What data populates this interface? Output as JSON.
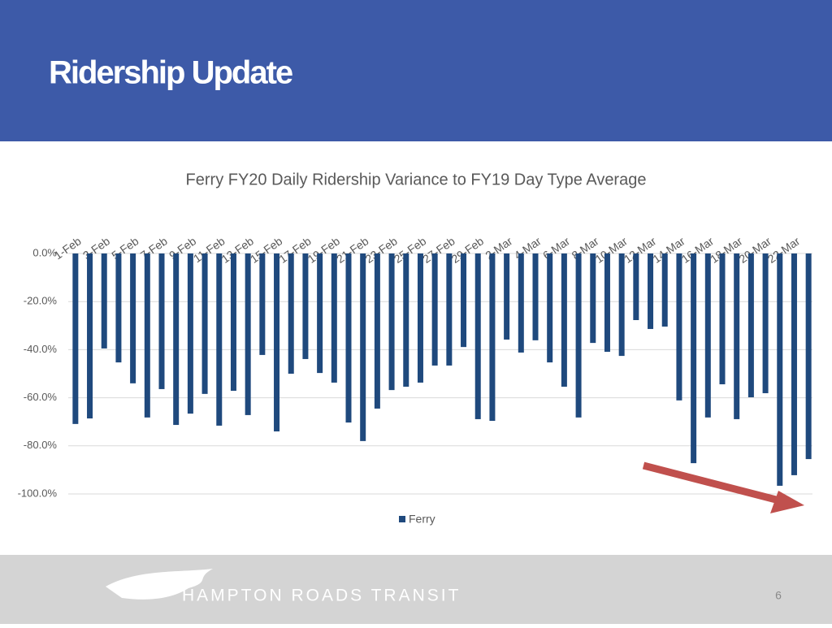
{
  "slide": {
    "title": "Ridership Update",
    "brand": "HAMPTON ROADS TRANSIT",
    "page_number": "6"
  },
  "chart_data": {
    "type": "bar",
    "title": "Ferry FY20 Daily Ridership Variance to FY19 Day Type Average",
    "categories": [
      "1-Feb",
      null,
      "3-Feb",
      null,
      "5-Feb",
      null,
      "7-Feb",
      null,
      "9-Feb",
      null,
      "11-Feb",
      null,
      "13-Feb",
      null,
      "15-Feb",
      null,
      "17-Feb",
      null,
      "19-Feb",
      null,
      "21-Feb",
      null,
      "23-Feb",
      null,
      "25-Feb",
      null,
      "27-Feb",
      null,
      "29-Feb",
      null,
      "2-Mar",
      null,
      "4-Mar",
      null,
      "6-Mar",
      null,
      "8-Mar",
      null,
      "10-Mar",
      null,
      "12-Mar",
      null,
      "14-Mar",
      null,
      "16-Mar",
      null,
      "18-Mar",
      null,
      "20-Mar",
      null,
      "22-Mar",
      null
    ],
    "series": [
      {
        "name": "Ferry",
        "color": "#1f497d",
        "values": [
          -70.9,
          -68.6,
          -39.5,
          -45.3,
          -54,
          -68.2,
          -56.4,
          -71.3,
          -66.6,
          -58.4,
          -71.6,
          -57.1,
          -67.2,
          -42.2,
          -74,
          -50,
          -43.9,
          -49.7,
          -53.7,
          -70.3,
          -78,
          -64.5,
          -56.8,
          -55.4,
          -53.7,
          -46.6,
          -46.6,
          -38.9,
          -68.9,
          -69.6,
          -35.8,
          -41.2,
          -36.1,
          -45.3,
          -55.4,
          -68.2,
          -37.2,
          -40.9,
          -42.6,
          -27.7,
          -31.4,
          -30.4,
          -61.1,
          -87.2,
          -68.2,
          -54.4,
          -68.9,
          -59.8,
          -58.1,
          -96.6,
          -92.2,
          -85.5
        ]
      }
    ],
    "ylim": [
      -100,
      0
    ],
    "yticks": [
      {
        "value": 0,
        "label": "0.0%"
      },
      {
        "value": -20,
        "label": "-20.0%"
      },
      {
        "value": -40,
        "label": "-40.0%"
      },
      {
        "value": -60,
        "label": "-60.0%"
      },
      {
        "value": -80,
        "label": "-80.0%"
      },
      {
        "value": -100,
        "label": "-100.0%"
      }
    ],
    "grid": true,
    "legend": "bottom"
  }
}
